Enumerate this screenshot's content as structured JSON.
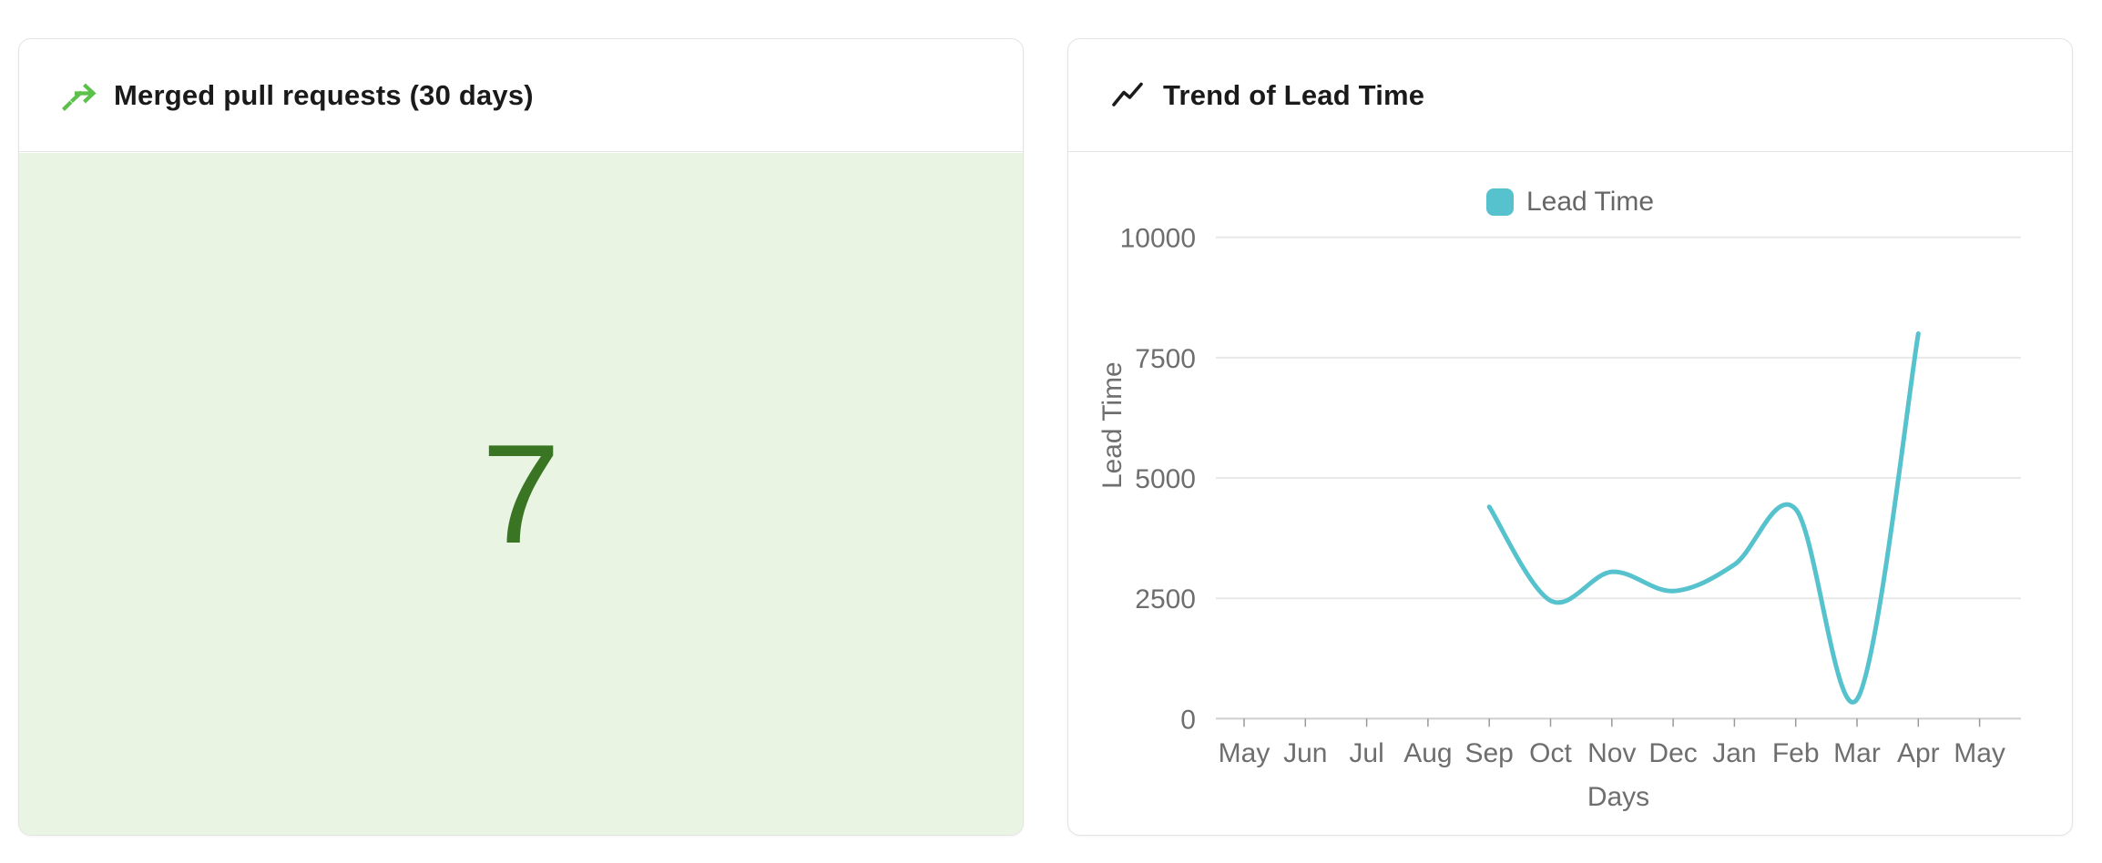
{
  "cards": {
    "merged_prs": {
      "title": "Merged pull requests (30 days)",
      "value": "7",
      "icon": "merge-arrow-icon",
      "icon_color": "#5bc14b",
      "value_color": "#3a7524",
      "body_background": "#e9f4e3"
    },
    "lead_time": {
      "title": "Trend of Lead Time",
      "icon": "trend-line-icon",
      "icon_color": "#1b1b1b"
    }
  },
  "chart_data": {
    "type": "line",
    "title": "Trend of Lead Time",
    "xlabel": "Days",
    "ylabel": "Lead Time",
    "legend": [
      "Lead Time"
    ],
    "legend_position": "top-center",
    "smooth": true,
    "grid": true,
    "line_color": "#55c2cd",
    "axis_text_color": "#6e6e6e",
    "categories": [
      "May",
      "Jun",
      "Jul",
      "Aug",
      "Sep",
      "Oct",
      "Nov",
      "Dec",
      "Jan",
      "Feb",
      "Mar",
      "Apr",
      "May"
    ],
    "series": [
      {
        "name": "Lead Time",
        "values": [
          null,
          null,
          null,
          null,
          4400,
          2450,
          3050,
          2650,
          3200,
          4350,
          400,
          8000,
          null
        ]
      }
    ],
    "yticks": [
      0,
      2500,
      5000,
      7500,
      10000
    ],
    "ylim": [
      0,
      10000
    ]
  }
}
